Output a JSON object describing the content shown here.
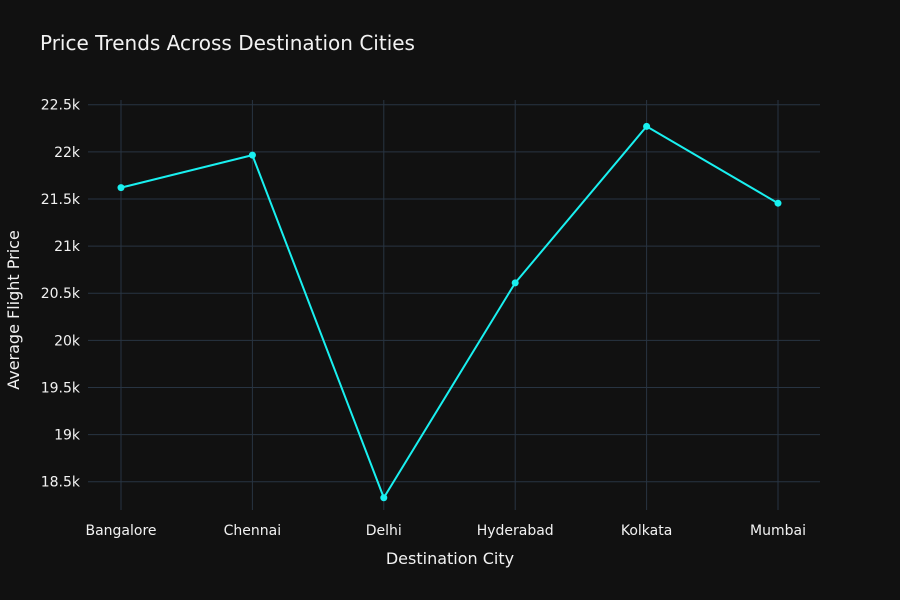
{
  "chart_data": {
    "type": "line",
    "title": "Price Trends Across Destination Cities",
    "xlabel": "Destination City",
    "ylabel": "Average Flight Price",
    "categories": [
      "Bangalore",
      "Chennai",
      "Delhi",
      "Hyderabad",
      "Kolkata",
      "Mumbai"
    ],
    "series": [
      {
        "values": [
          21620,
          21965,
          18330,
          20610,
          22270,
          21455
        ],
        "color": "#19f0f0",
        "marker": "circle"
      }
    ],
    "ylim": [
      18200,
      22550
    ],
    "yticks": [
      18500,
      19000,
      19500,
      20000,
      20500,
      21000,
      21500,
      22000,
      22500
    ],
    "ytick_labels": [
      "18.5k",
      "19k",
      "19.5k",
      "20k",
      "20.5k",
      "21k",
      "21.5k",
      "22k",
      "22.5k"
    ],
    "grid": true,
    "background": "#111111",
    "grid_color": "#283442",
    "text_color": "#f2f2f2"
  }
}
